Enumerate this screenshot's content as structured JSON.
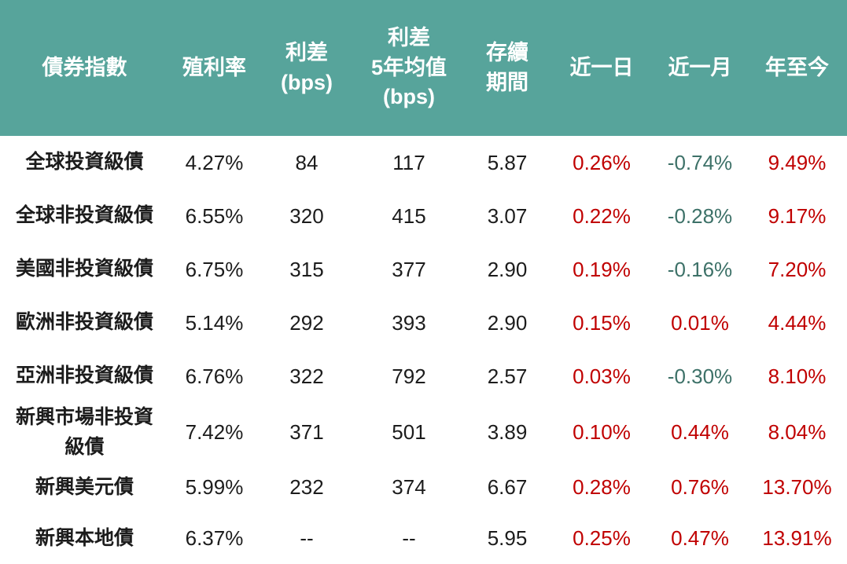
{
  "colors": {
    "header_bg": "#57a49b",
    "positive_value": "#c00000",
    "negative_value": "#3d7168",
    "body_text": "#1c1c1c",
    "header_text": "#ffffff"
  },
  "table": {
    "columns": [
      {
        "key": "name",
        "label": "債券指數"
      },
      {
        "key": "yield",
        "label": "殖利率"
      },
      {
        "key": "spread",
        "label": "利差\n(bps)"
      },
      {
        "key": "spread_5y_avg",
        "label": "利差\n5年均值\n(bps)"
      },
      {
        "key": "duration",
        "label": "存續\n期間"
      },
      {
        "key": "d1",
        "label": "近一日"
      },
      {
        "key": "m1",
        "label": "近一月"
      },
      {
        "key": "ytd",
        "label": "年至今"
      }
    ],
    "performance_columns": [
      "d1",
      "m1",
      "ytd"
    ],
    "rows": [
      {
        "name": "全球投資級債",
        "yield": "4.27%",
        "spread": "84",
        "spread_5y_avg": "117",
        "duration": "5.87",
        "d1": "0.26%",
        "m1": "-0.74%",
        "ytd": "9.49%"
      },
      {
        "name": "全球非投資級債",
        "yield": "6.55%",
        "spread": "320",
        "spread_5y_avg": "415",
        "duration": "3.07",
        "d1": "0.22%",
        "m1": "-0.28%",
        "ytd": "9.17%"
      },
      {
        "name": "美國非投資級債",
        "yield": "6.75%",
        "spread": "315",
        "spread_5y_avg": "377",
        "duration": "2.90",
        "d1": "0.19%",
        "m1": "-0.16%",
        "ytd": "7.20%"
      },
      {
        "name": "歐洲非投資級債",
        "yield": "5.14%",
        "spread": "292",
        "spread_5y_avg": "393",
        "duration": "2.90",
        "d1": "0.15%",
        "m1": "0.01%",
        "ytd": "4.44%"
      },
      {
        "name": "亞洲非投資級債",
        "yield": "6.76%",
        "spread": "322",
        "spread_5y_avg": "792",
        "duration": "2.57",
        "d1": "0.03%",
        "m1": "-0.30%",
        "ytd": "8.10%"
      },
      {
        "name": "新興市場非投資\n級債",
        "yield": "7.42%",
        "spread": "371",
        "spread_5y_avg": "501",
        "duration": "3.89",
        "d1": "0.10%",
        "m1": "0.44%",
        "ytd": "8.04%"
      },
      {
        "name": "新興美元債",
        "yield": "5.99%",
        "spread": "232",
        "spread_5y_avg": "374",
        "duration": "6.67",
        "d1": "0.28%",
        "m1": "0.76%",
        "ytd": "13.70%"
      },
      {
        "name": "新興本地債",
        "yield": "6.37%",
        "spread": "--",
        "spread_5y_avg": "--",
        "duration": "5.95",
        "d1": "0.25%",
        "m1": "0.47%",
        "ytd": "13.91%"
      }
    ]
  }
}
